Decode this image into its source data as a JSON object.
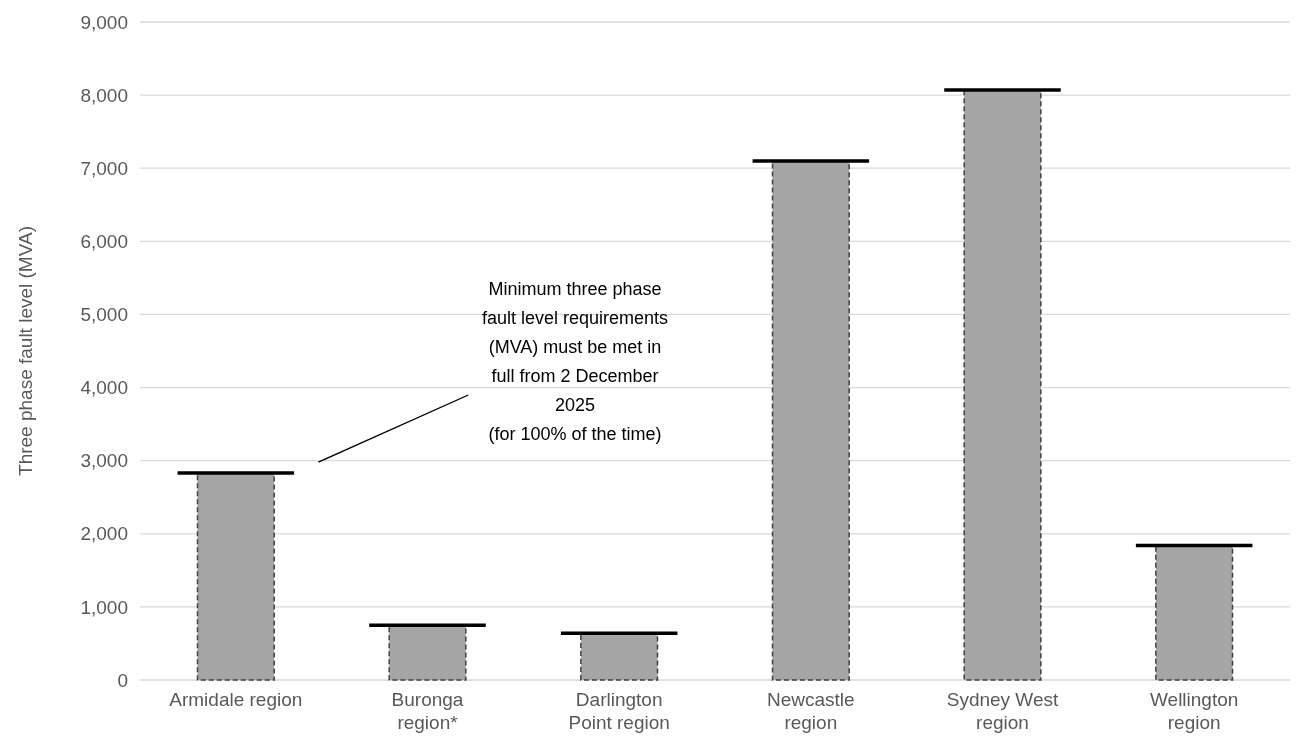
{
  "chart_data": {
    "type": "bar",
    "ylabel": "Three phase fault level (MVA)",
    "categories": [
      "Armidale region",
      "Buronga region*",
      "Darlington Point region",
      "Newcastle region",
      "Sydney West region",
      "Wellington region"
    ],
    "values": [
      2830,
      750,
      640,
      7100,
      8070,
      1840
    ],
    "color": "#a5a5a5",
    "ylim": [
      0,
      9000
    ],
    "yticks": [
      {
        "value": 0,
        "label": "0"
      },
      {
        "value": 1000,
        "label": "1,000"
      },
      {
        "value": 2000,
        "label": "2,000"
      },
      {
        "value": 3000,
        "label": "3,000"
      },
      {
        "value": 4000,
        "label": "4,000"
      },
      {
        "value": 5000,
        "label": "5,000"
      },
      {
        "value": 6000,
        "label": "6,000"
      },
      {
        "value": 7000,
        "label": "7,000"
      },
      {
        "value": 8000,
        "label": "8,000"
      },
      {
        "value": 9000,
        "label": "9,000"
      }
    ],
    "grid": "y",
    "annotations": [
      "Minimum three phase\nfault level requirements\n(MVA)  must be met in\nfull from 2 December\n2025\n(for 100% of the time)"
    ]
  }
}
